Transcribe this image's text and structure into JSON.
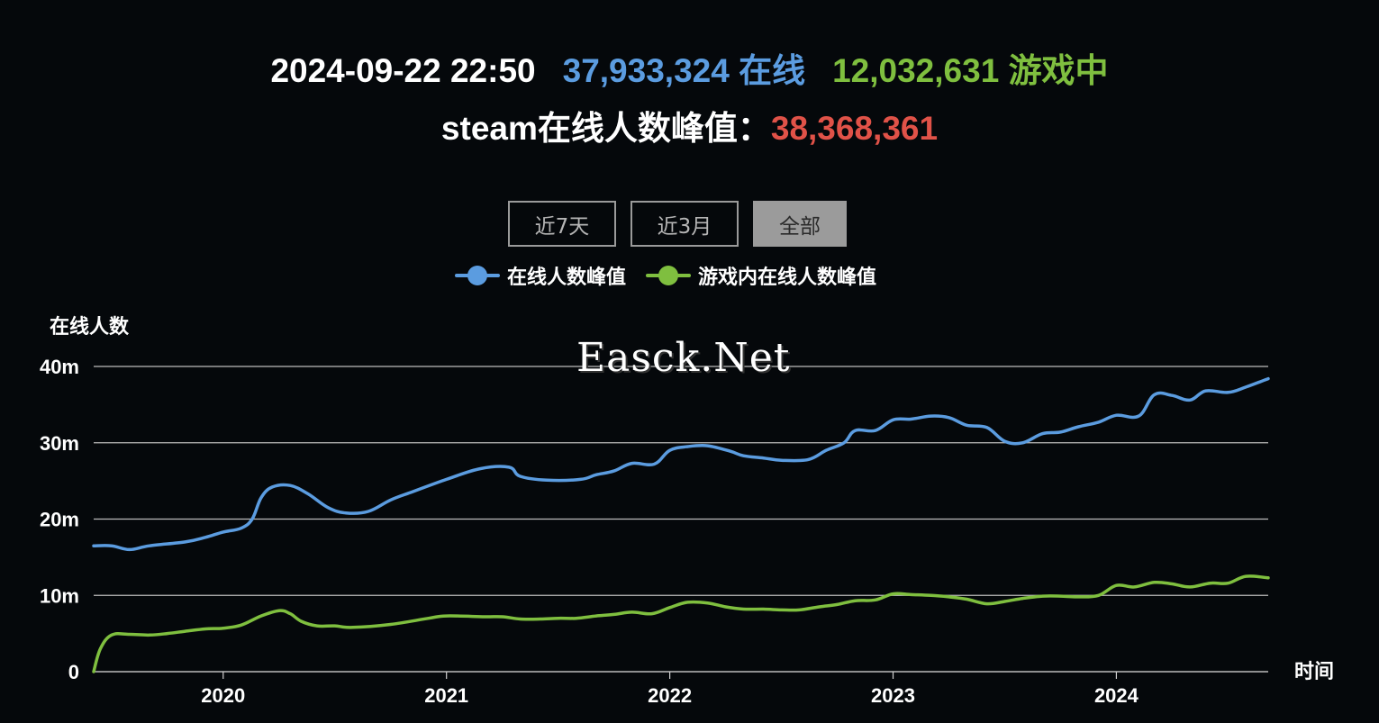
{
  "header": {
    "timestamp": "2024-09-22 22:50",
    "online_count": "37,933,324",
    "online_label": "在线",
    "ingame_count": "12,032,631",
    "ingame_label": "游戏中",
    "peak_label": "steam在线人数峰值：",
    "peak_value": "38,368,361"
  },
  "range_buttons": [
    {
      "label": "近7天",
      "active": false
    },
    {
      "label": "近3月",
      "active": false
    },
    {
      "label": "全部",
      "active": true
    }
  ],
  "watermark": "Easck.Net",
  "colors": {
    "online": "#5b9ce0",
    "ingame": "#7fbf3f",
    "peak": "#e05248",
    "background": "#05080b",
    "grid": "#cfcfcf"
  },
  "chart_data": {
    "type": "line",
    "ylabel": "在线人数",
    "xlabel": "时间",
    "ylim": [
      0,
      40
    ],
    "xlim": [
      2019.42,
      2024.68
    ],
    "y_ticks": [
      "0",
      "10m",
      "20m",
      "30m",
      "40m"
    ],
    "x_ticks": [
      "2020",
      "2021",
      "2022",
      "2023",
      "2024"
    ],
    "legend_position": "top-center",
    "grid": true,
    "series": [
      {
        "name": "在线人数峰值",
        "color": "#5b9ce0",
        "points": [
          [
            2019.42,
            16.5
          ],
          [
            2019.5,
            16.5
          ],
          [
            2019.58,
            16.0
          ],
          [
            2019.67,
            16.5
          ],
          [
            2019.83,
            17.0
          ],
          [
            2019.92,
            17.6
          ],
          [
            2020.0,
            18.3
          ],
          [
            2020.08,
            18.8
          ],
          [
            2020.13,
            20.0
          ],
          [
            2020.17,
            22.8
          ],
          [
            2020.22,
            24.2
          ],
          [
            2020.3,
            24.4
          ],
          [
            2020.38,
            23.3
          ],
          [
            2020.47,
            21.5
          ],
          [
            2020.55,
            20.8
          ],
          [
            2020.65,
            21.0
          ],
          [
            2020.75,
            22.5
          ],
          [
            2020.85,
            23.6
          ],
          [
            2021.0,
            25.2
          ],
          [
            2021.15,
            26.6
          ],
          [
            2021.28,
            26.8
          ],
          [
            2021.33,
            25.6
          ],
          [
            2021.45,
            25.1
          ],
          [
            2021.6,
            25.2
          ],
          [
            2021.67,
            25.8
          ],
          [
            2021.75,
            26.3
          ],
          [
            2021.83,
            27.3
          ],
          [
            2021.93,
            27.2
          ],
          [
            2022.0,
            29.0
          ],
          [
            2022.08,
            29.5
          ],
          [
            2022.17,
            29.6
          ],
          [
            2022.27,
            28.9
          ],
          [
            2022.33,
            28.3
          ],
          [
            2022.42,
            28.0
          ],
          [
            2022.5,
            27.7
          ],
          [
            2022.62,
            27.8
          ],
          [
            2022.7,
            29.0
          ],
          [
            2022.78,
            30.0
          ],
          [
            2022.83,
            31.6
          ],
          [
            2022.92,
            31.6
          ],
          [
            2023.0,
            33.0
          ],
          [
            2023.08,
            33.1
          ],
          [
            2023.17,
            33.5
          ],
          [
            2023.25,
            33.3
          ],
          [
            2023.33,
            32.3
          ],
          [
            2023.42,
            32.0
          ],
          [
            2023.5,
            30.2
          ],
          [
            2023.58,
            30.0
          ],
          [
            2023.67,
            31.2
          ],
          [
            2023.75,
            31.4
          ],
          [
            2023.83,
            32.1
          ],
          [
            2023.92,
            32.7
          ],
          [
            2024.0,
            33.6
          ],
          [
            2024.1,
            33.5
          ],
          [
            2024.17,
            36.3
          ],
          [
            2024.25,
            36.2
          ],
          [
            2024.33,
            35.6
          ],
          [
            2024.4,
            36.8
          ],
          [
            2024.5,
            36.6
          ],
          [
            2024.58,
            37.3
          ],
          [
            2024.68,
            38.4
          ]
        ]
      },
      {
        "name": "游戏内在线人数峰值",
        "color": "#7fbf3f",
        "points": [
          [
            2019.42,
            0
          ],
          [
            2019.45,
            3.0
          ],
          [
            2019.5,
            4.8
          ],
          [
            2019.58,
            4.9
          ],
          [
            2019.67,
            4.8
          ],
          [
            2019.75,
            5.0
          ],
          [
            2019.83,
            5.3
          ],
          [
            2019.92,
            5.6
          ],
          [
            2020.0,
            5.7
          ],
          [
            2020.08,
            6.1
          ],
          [
            2020.17,
            7.3
          ],
          [
            2020.25,
            8.0
          ],
          [
            2020.3,
            7.6
          ],
          [
            2020.35,
            6.6
          ],
          [
            2020.42,
            6.0
          ],
          [
            2020.5,
            6.0
          ],
          [
            2020.58,
            5.8
          ],
          [
            2020.75,
            6.2
          ],
          [
            2020.92,
            7.0
          ],
          [
            2021.0,
            7.3
          ],
          [
            2021.17,
            7.2
          ],
          [
            2021.25,
            7.2
          ],
          [
            2021.33,
            6.9
          ],
          [
            2021.42,
            6.9
          ],
          [
            2021.5,
            7.0
          ],
          [
            2021.58,
            7.0
          ],
          [
            2021.67,
            7.3
          ],
          [
            2021.75,
            7.5
          ],
          [
            2021.83,
            7.8
          ],
          [
            2021.92,
            7.6
          ],
          [
            2022.0,
            8.4
          ],
          [
            2022.08,
            9.1
          ],
          [
            2022.17,
            9.0
          ],
          [
            2022.25,
            8.5
          ],
          [
            2022.33,
            8.2
          ],
          [
            2022.42,
            8.2
          ],
          [
            2022.5,
            8.1
          ],
          [
            2022.58,
            8.1
          ],
          [
            2022.67,
            8.5
          ],
          [
            2022.75,
            8.8
          ],
          [
            2022.83,
            9.3
          ],
          [
            2022.92,
            9.4
          ],
          [
            2023.0,
            10.2
          ],
          [
            2023.08,
            10.1
          ],
          [
            2023.17,
            10.0
          ],
          [
            2023.25,
            9.8
          ],
          [
            2023.33,
            9.5
          ],
          [
            2023.42,
            8.9
          ],
          [
            2023.5,
            9.2
          ],
          [
            2023.58,
            9.6
          ],
          [
            2023.67,
            9.9
          ],
          [
            2023.75,
            9.9
          ],
          [
            2023.83,
            9.8
          ],
          [
            2023.92,
            10.0
          ],
          [
            2024.0,
            11.3
          ],
          [
            2024.08,
            11.1
          ],
          [
            2024.17,
            11.7
          ],
          [
            2024.25,
            11.5
          ],
          [
            2024.33,
            11.1
          ],
          [
            2024.42,
            11.6
          ],
          [
            2024.5,
            11.6
          ],
          [
            2024.58,
            12.5
          ],
          [
            2024.68,
            12.3
          ]
        ]
      }
    ]
  }
}
